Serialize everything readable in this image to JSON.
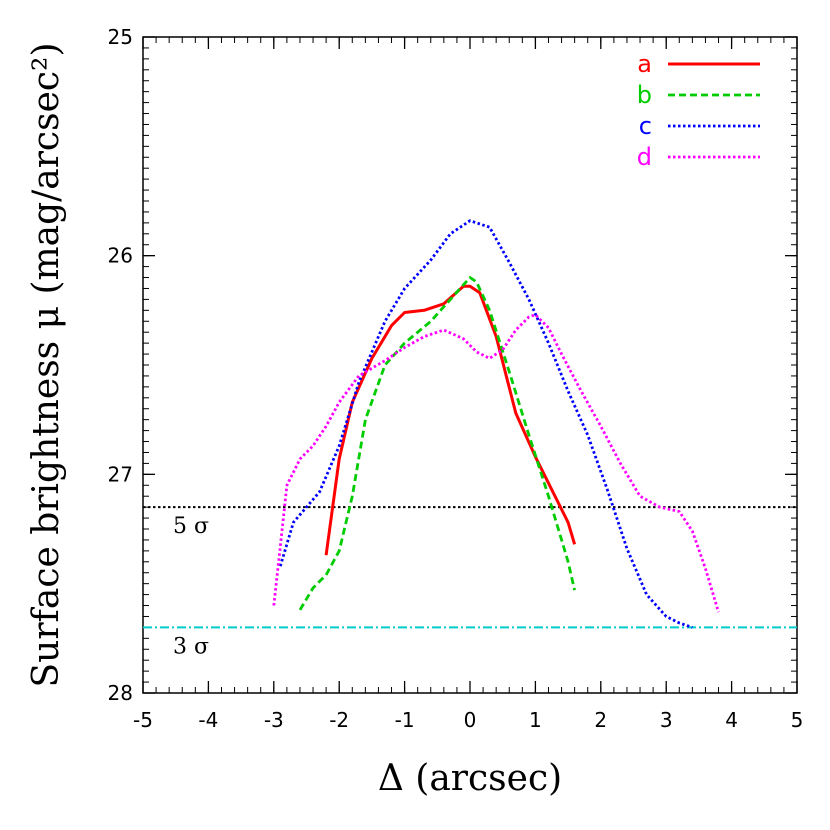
{
  "chart_data": {
    "type": "line",
    "title": "",
    "xlabel": "Δ (arcsec)",
    "ylabel": "Surface brightness μ (mag/arcsec²)",
    "xlim": [
      -5,
      5
    ],
    "ylim": [
      28,
      25
    ],
    "y_inverted": true,
    "xticks": [
      "-5",
      "-4",
      "-3",
      "-2",
      "-1",
      "0",
      "1",
      "2",
      "3",
      "4",
      "5"
    ],
    "yticks": [
      "25",
      "26",
      "27",
      "28"
    ],
    "legend_position": "top-right",
    "series": [
      {
        "name": "a",
        "color": "#ff0000",
        "style": "solid",
        "x": [
          -2.2,
          -2.0,
          -1.8,
          -1.5,
          -1.2,
          -1.0,
          -0.7,
          -0.4,
          -0.1,
          0.0,
          0.15,
          0.4,
          0.7,
          1.0,
          1.3,
          1.5,
          1.6
        ],
        "y": [
          27.37,
          26.93,
          26.67,
          26.47,
          26.32,
          26.26,
          26.25,
          26.22,
          26.14,
          26.14,
          26.17,
          26.37,
          26.72,
          26.92,
          27.1,
          27.22,
          27.32
        ]
      },
      {
        "name": "b",
        "color": "#00cc00",
        "style": "dashed",
        "x": [
          -2.6,
          -2.4,
          -2.2,
          -2.0,
          -1.8,
          -1.6,
          -1.3,
          -1.0,
          -0.6,
          -0.3,
          0.0,
          0.1,
          0.3,
          0.6,
          0.9,
          1.2,
          1.5,
          1.6
        ],
        "y": [
          27.62,
          27.52,
          27.46,
          27.35,
          27.1,
          26.75,
          26.5,
          26.4,
          26.3,
          26.2,
          26.1,
          26.12,
          26.25,
          26.53,
          26.82,
          27.1,
          27.4,
          27.53
        ]
      },
      {
        "name": "c",
        "color": "#0000ff",
        "style": "dotted",
        "x": [
          -2.9,
          -2.7,
          -2.5,
          -2.3,
          -2.0,
          -1.7,
          -1.3,
          -1.0,
          -0.6,
          -0.3,
          0.0,
          0.3,
          0.6,
          0.9,
          1.2,
          1.5,
          1.8,
          2.1,
          2.4,
          2.7,
          3.0,
          3.2,
          3.4
        ],
        "y": [
          27.42,
          27.22,
          27.15,
          27.08,
          26.87,
          26.58,
          26.3,
          26.15,
          26.02,
          25.9,
          25.84,
          25.87,
          26.03,
          26.2,
          26.4,
          26.62,
          26.82,
          27.07,
          27.34,
          27.55,
          27.65,
          27.68,
          27.7
        ]
      },
      {
        "name": "d",
        "color": "#ff00ff",
        "style": "dotted",
        "x": [
          -3.0,
          -2.9,
          -2.8,
          -2.6,
          -2.4,
          -2.2,
          -2.0,
          -1.7,
          -1.3,
          -1.0,
          -0.7,
          -0.4,
          -0.1,
          0.1,
          0.3,
          0.5,
          0.7,
          0.9,
          1.0,
          1.2,
          1.4,
          1.7,
          2.0,
          2.3,
          2.6,
          2.9,
          3.2,
          3.4,
          3.6,
          3.8
        ],
        "y": [
          27.6,
          27.33,
          27.05,
          26.93,
          26.87,
          26.78,
          26.67,
          26.55,
          26.48,
          26.42,
          26.37,
          26.34,
          26.38,
          26.44,
          26.47,
          26.43,
          26.34,
          26.28,
          26.27,
          26.33,
          26.45,
          26.62,
          26.78,
          26.95,
          27.1,
          27.15,
          27.17,
          27.26,
          27.43,
          27.63
        ]
      }
    ],
    "reference_lines": [
      {
        "label": "5 σ",
        "y": 27.15,
        "color": "#000000",
        "style": "dotted"
      },
      {
        "label": "3 σ",
        "y": 27.7,
        "color": "#00cccc",
        "style": "dashdot"
      }
    ]
  }
}
